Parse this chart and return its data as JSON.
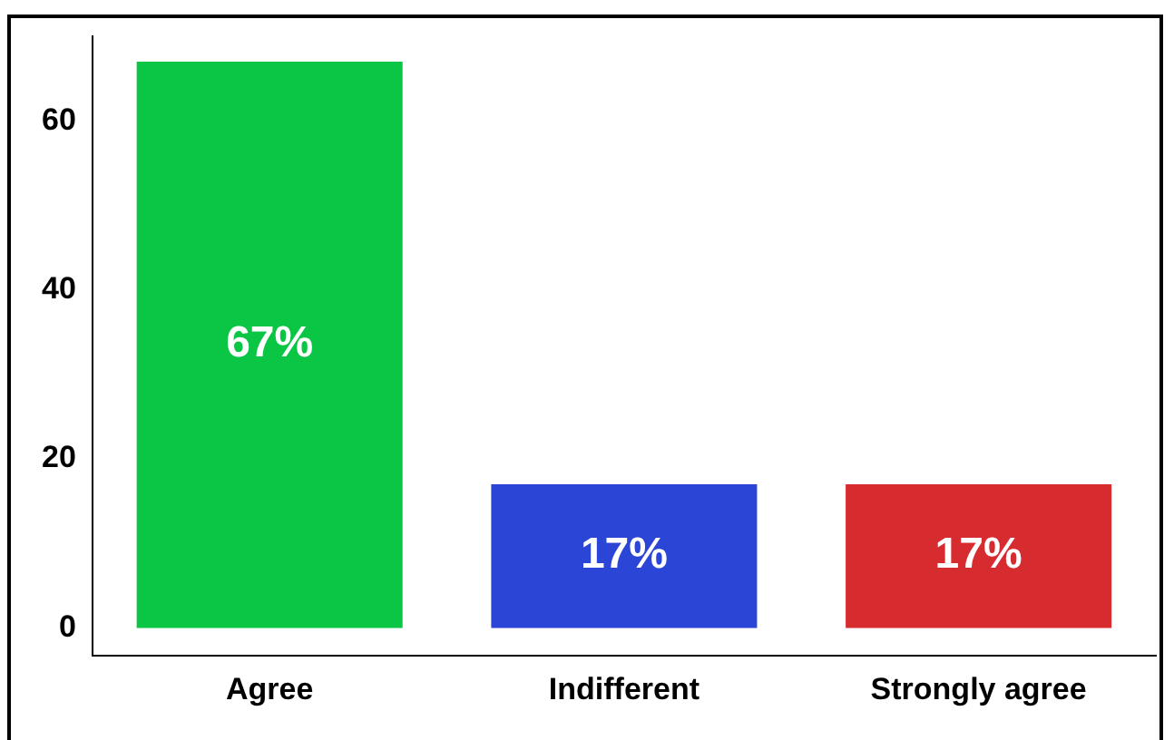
{
  "chart_data": {
    "type": "bar",
    "categories": [
      "Agree",
      "Indifferent",
      "Strongly agree"
    ],
    "values": [
      67,
      17,
      17
    ],
    "colors": [
      "#0bc645",
      "#2b45d6",
      "#d62b2f"
    ],
    "value_labels": [
      "67%",
      "17%",
      "17%"
    ],
    "ylim": [
      -3.3,
      70
    ],
    "yticks": [
      0,
      20,
      40,
      60
    ],
    "grid": false,
    "legend": false
  }
}
